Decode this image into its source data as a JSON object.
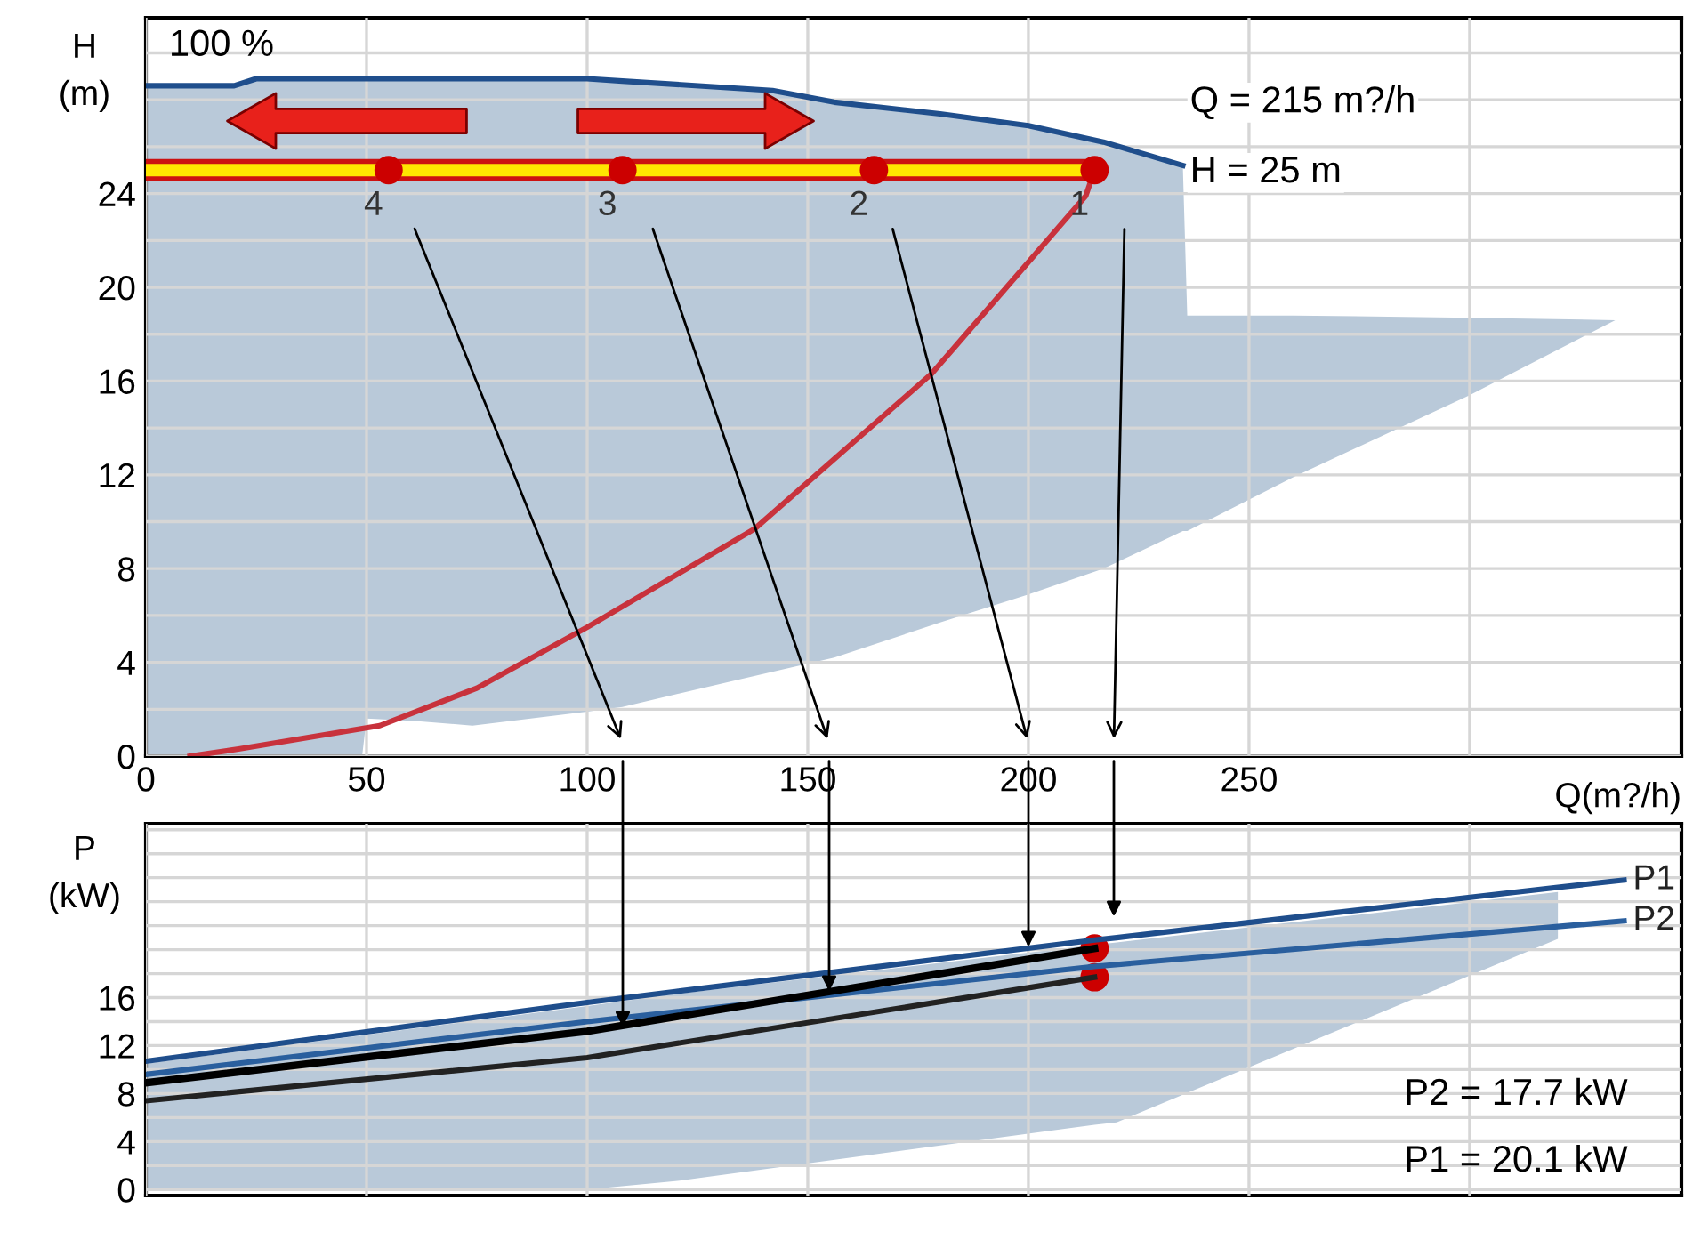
{
  "chart_data": [
    {
      "type": "line",
      "ylabel": "H\n(m)",
      "xlabel": "Q(m?/h)",
      "xlim": [
        0,
        348
      ],
      "ylim": [
        0,
        31.5
      ],
      "xticks": [
        0,
        50,
        100,
        150,
        200,
        250,
        {
          "value": 300,
          "label": null
        }
      ],
      "yticks": [
        0,
        {
          "value": 2,
          "label": null
        },
        4,
        {
          "value": 6,
          "label": null
        },
        8,
        {
          "value": 10,
          "label": null
        },
        12,
        {
          "value": 14,
          "label": null
        },
        16,
        {
          "value": 18,
          "label": null
        },
        20,
        {
          "value": 22,
          "label": null
        },
        24,
        {
          "value": 26,
          "label": null
        },
        {
          "value": 28,
          "label": null
        },
        {
          "value": 30,
          "label": null
        }
      ],
      "grid": true,
      "series": [
        {
          "color": "#1f4e8c",
          "x": [
            0,
            20,
            25,
            49,
            50,
            61,
            74,
            100,
            108,
            142,
            156,
            180,
            200,
            217,
            235,
            236,
            260,
            300,
            333
          ],
          "values": [
            28.6,
            28.6,
            28.9,
            28.9,
            28.9,
            28.9,
            28.9,
            28.9,
            28.8,
            28.4,
            27.9,
            27.4,
            26.9,
            26.2,
            25.2,
            null,
            null,
            null,
            null
          ],
          "upper": [
            28.6,
            28.6,
            28.9,
            28.9,
            28.9,
            28.9,
            28.9,
            28.9,
            28.8,
            28.4,
            27.9,
            27.4,
            26.9,
            26.2,
            25.2,
            18.8,
            18.8,
            18.7,
            18.6
          ],
          "lower": [
            0,
            0,
            0,
            0,
            1.6,
            1.5,
            1.3,
            1.9,
            2.1,
            3.6,
            4.2,
            5.7,
            6.9,
            8.0,
            9.6,
            9.6,
            11.9,
            15.4,
            18.6
          ]
        },
        {
          "color": "#c8323c",
          "x": [
            10,
            21,
            53,
            75,
            100,
            138,
            161,
            178,
            213,
            215
          ],
          "values": [
            0,
            0.3,
            1.3,
            2.9,
            5.5,
            9.7,
            13.5,
            16.3,
            23.9,
            25
          ]
        },
        {
          "color": "#ffe600",
          "x": [
            0,
            215
          ],
          "values": [
            25,
            25
          ]
        },
        {
          "type": "scatter",
          "color": "#cc0000",
          "marker": "circle",
          "x": [
            55,
            108,
            165,
            215
          ],
          "values": [
            25,
            25,
            25,
            25
          ]
        }
      ],
      "annotations": [
        "100 %",
        {
          "text": "4",
          "x": 55,
          "y": 25
        },
        {
          "text": "3",
          "x": 108,
          "y": 25
        },
        {
          "text": "2",
          "x": 165,
          "y": 25
        },
        {
          "text": "1",
          "x": 215,
          "y": 25
        },
        "Q = 215 m?/h",
        "H = 25 m"
      ]
    },
    {
      "type": "line",
      "ylabel": "P\n(kW)",
      "xlim": [
        0,
        348
      ],
      "ylim": [
        -0.5,
        30.5
      ],
      "tick_labels": "y",
      "xticks": [
        0,
        50,
        100,
        150,
        200,
        250,
        300
      ],
      "yticks": [
        0,
        {
          "value": 2,
          "label": null
        },
        4,
        {
          "value": 6,
          "label": null
        },
        8,
        {
          "value": 10,
          "label": null
        },
        12,
        {
          "value": 14,
          "label": null
        },
        16,
        {
          "value": 18,
          "label": null
        },
        {
          "value": 20,
          "label": null
        },
        {
          "value": 22,
          "label": null
        },
        {
          "value": 24,
          "label": null
        },
        {
          "value": 26,
          "label": null
        },
        {
          "value": 28,
          "label": null
        },
        {
          "value": 30,
          "label": null
        }
      ],
      "grid": true,
      "series": [
        {
          "name": "P1",
          "color": "#1f4e8c",
          "x": [
            0,
            100,
            120,
            215,
            220,
            320,
            335
          ],
          "values": [
            10.7,
            15.6,
            16.5,
            20.8,
            21.0,
            25.2,
            25.8
          ],
          "upper": [
            10.5,
            15.3,
            16.3,
            20.4,
            20.6,
            24.8,
            null
          ],
          "lower": [
            0,
            0,
            0.7,
            5.4,
            5.6,
            20.9,
            null
          ]
        },
        {
          "name": "P2",
          "color": "#2a5f9e",
          "x": [
            0,
            100,
            215,
            335
          ],
          "values": [
            9.6,
            14.0,
            18.6,
            22.4
          ]
        },
        {
          "color": "#000000",
          "x": [
            0,
            100,
            215
          ],
          "values": [
            8.9,
            13.2,
            20.1
          ]
        },
        {
          "color": "#222222",
          "x": [
            0,
            100,
            215
          ],
          "values": [
            7.4,
            11.0,
            17.7
          ]
        },
        {
          "type": "scatter",
          "color": "#cc0000",
          "marker": "circle",
          "x": [
            215,
            215
          ],
          "values": [
            20.1,
            17.7
          ]
        }
      ],
      "annotations": [
        "P2 = 17.7 kW",
        "P1 = 20.1 kW"
      ]
    }
  ]
}
